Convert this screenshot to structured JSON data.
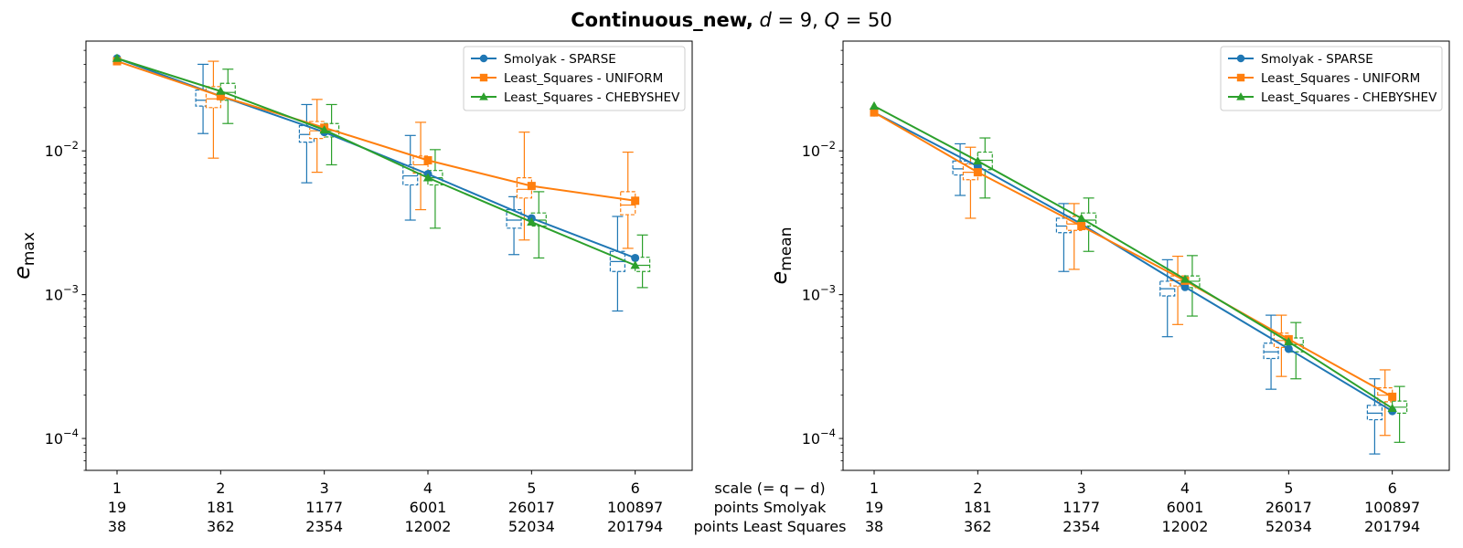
{
  "figure_title": {
    "bold": "Continuous_new,",
    "d_var": "d",
    "d_value": "= 9,",
    "q_var": "Q",
    "q_value": "= 50"
  },
  "x_footer": {
    "line1": "scale (= q − d)",
    "line2": "points Smolyak",
    "line3": "points Least Squares"
  },
  "colors": {
    "smolyak": "#1f77b4",
    "ls_uniform": "#ff7f0e",
    "ls_cheb": "#2ca02c"
  },
  "chart_data": [
    {
      "type": "line",
      "ylabel": {
        "base": "e",
        "sub": "max"
      },
      "yscale": "log",
      "ylim": [
        6e-05,
        0.058
      ],
      "yticks": [
        {
          "value": 0.01,
          "base": "10",
          "exp": "−2"
        },
        {
          "value": 0.001,
          "base": "10",
          "exp": "−3"
        },
        {
          "value": 0.0001,
          "base": "10",
          "exp": "−4"
        }
      ],
      "x": [
        1,
        2,
        3,
        4,
        5,
        6
      ],
      "xlim": [
        0.7,
        6.55
      ],
      "x_tick_labels": [
        [
          "1",
          "19",
          "38"
        ],
        [
          "2",
          "181",
          "362"
        ],
        [
          "3",
          "1177",
          "2354"
        ],
        [
          "4",
          "6001",
          "12002"
        ],
        [
          "5",
          "26017",
          "52034"
        ],
        [
          "6",
          "100897",
          "201794"
        ]
      ],
      "legend_position": "top-right",
      "series": [
        {
          "name": "Smolyak - SPARSE",
          "color_key": "smolyak",
          "marker": "circle",
          "box_offset": -0.17,
          "values": [
            0.044,
            0.024,
            0.0135,
            0.0069,
            0.0034,
            0.0018
          ],
          "boxes": [
            {
              "lo": 0.0132,
              "q1": 0.0205,
              "med": 0.0225,
              "q3": 0.0265,
              "hi": 0.04
            },
            {
              "lo": 0.006,
              "q1": 0.0115,
              "med": 0.013,
              "q3": 0.015,
              "hi": 0.021
            },
            {
              "lo": 0.0033,
              "q1": 0.0058,
              "med": 0.0067,
              "q3": 0.008,
              "hi": 0.0128
            },
            {
              "lo": 0.0019,
              "q1": 0.0029,
              "med": 0.0033,
              "q3": 0.0039,
              "hi": 0.0048
            },
            {
              "lo": 0.00077,
              "q1": 0.00145,
              "med": 0.0017,
              "q3": 0.002,
              "hi": 0.0035
            }
          ]
        },
        {
          "name": "Least_Squares - UNIFORM",
          "color_key": "ls_uniform",
          "marker": "square",
          "box_offset": -0.07,
          "values": [
            0.042,
            0.024,
            0.0145,
            0.0086,
            0.0057,
            0.0045
          ],
          "boxes": [
            {
              "lo": 0.0089,
              "q1": 0.02,
              "med": 0.023,
              "q3": 0.028,
              "hi": 0.042
            },
            {
              "lo": 0.0071,
              "q1": 0.0122,
              "med": 0.0138,
              "q3": 0.016,
              "hi": 0.0228
            },
            {
              "lo": 0.0039,
              "q1": 0.007,
              "med": 0.008,
              "q3": 0.0092,
              "hi": 0.0158
            },
            {
              "lo": 0.0024,
              "q1": 0.0047,
              "med": 0.0054,
              "q3": 0.0065,
              "hi": 0.0135
            },
            {
              "lo": 0.0021,
              "q1": 0.0036,
              "med": 0.0042,
              "q3": 0.0052,
              "hi": 0.0098
            }
          ]
        },
        {
          "name": "Least_Squares - CHEBYSHEV",
          "color_key": "ls_cheb",
          "marker": "triangle",
          "box_offset": 0.07,
          "values": [
            0.044,
            0.026,
            0.014,
            0.0065,
            0.0032,
            0.0016
          ],
          "boxes": [
            {
              "lo": 0.0155,
              "q1": 0.0225,
              "med": 0.0255,
              "q3": 0.0295,
              "hi": 0.037
            },
            {
              "lo": 0.008,
              "q1": 0.0125,
              "med": 0.0138,
              "q3": 0.0155,
              "hi": 0.021
            },
            {
              "lo": 0.0029,
              "q1": 0.0058,
              "med": 0.0065,
              "q3": 0.0073,
              "hi": 0.0102
            },
            {
              "lo": 0.0018,
              "q1": 0.003,
              "med": 0.0033,
              "q3": 0.0037,
              "hi": 0.0052
            },
            {
              "lo": 0.00112,
              "q1": 0.00145,
              "med": 0.0016,
              "q3": 0.00182,
              "hi": 0.0026
            }
          ]
        }
      ]
    },
    {
      "type": "line",
      "ylabel": {
        "base": "e",
        "sub": "mean"
      },
      "yscale": "log",
      "ylim": [
        6e-05,
        0.058
      ],
      "yticks": [
        {
          "value": 0.01,
          "base": "10",
          "exp": "−2"
        },
        {
          "value": 0.001,
          "base": "10",
          "exp": "−3"
        },
        {
          "value": 0.0001,
          "base": "10",
          "exp": "−4"
        }
      ],
      "x": [
        1,
        2,
        3,
        4,
        5,
        6
      ],
      "xlim": [
        0.7,
        6.55
      ],
      "x_tick_labels": [
        [
          "1",
          "19",
          "38"
        ],
        [
          "2",
          "181",
          "362"
        ],
        [
          "3",
          "1177",
          "2354"
        ],
        [
          "4",
          "6001",
          "12002"
        ],
        [
          "5",
          "26017",
          "52034"
        ],
        [
          "6",
          "100897",
          "201794"
        ]
      ],
      "legend_position": "top-right",
      "series": [
        {
          "name": "Smolyak - SPARSE",
          "color_key": "smolyak",
          "marker": "circle",
          "box_offset": -0.17,
          "values": [
            0.0185,
            0.0078,
            0.0031,
            0.00113,
            0.00042,
            0.000155
          ],
          "boxes": [
            {
              "lo": 0.0049,
              "q1": 0.0068,
              "med": 0.0075,
              "q3": 0.0085,
              "hi": 0.0112
            },
            {
              "lo": 0.00145,
              "q1": 0.0027,
              "med": 0.003,
              "q3": 0.0034,
              "hi": 0.0043
            },
            {
              "lo": 0.00051,
              "q1": 0.00098,
              "med": 0.0011,
              "q3": 0.00124,
              "hi": 0.00175
            },
            {
              "lo": 0.00022,
              "q1": 0.00036,
              "med": 0.0004,
              "q3": 0.00046,
              "hi": 0.00072
            },
            {
              "lo": 7.8e-05,
              "q1": 0.000135,
              "med": 0.00015,
              "q3": 0.00017,
              "hi": 0.00026
            }
          ]
        },
        {
          "name": "Least_Squares - UNIFORM",
          "color_key": "ls_uniform",
          "marker": "square",
          "box_offset": -0.07,
          "values": [
            0.0185,
            0.0071,
            0.003,
            0.00125,
            0.00049,
            0.000195
          ],
          "boxes": [
            {
              "lo": 0.0034,
              "q1": 0.0063,
              "med": 0.0071,
              "q3": 0.0081,
              "hi": 0.0106
            },
            {
              "lo": 0.0015,
              "q1": 0.0028,
              "med": 0.0031,
              "q3": 0.0035,
              "hi": 0.0043
            },
            {
              "lo": 0.00062,
              "q1": 0.00115,
              "med": 0.00125,
              "q3": 0.00135,
              "hi": 0.00185
            },
            {
              "lo": 0.00027,
              "q1": 0.00043,
              "med": 0.00048,
              "q3": 0.00054,
              "hi": 0.00072
            },
            {
              "lo": 0.000105,
              "q1": 0.00018,
              "med": 0.0002,
              "q3": 0.000225,
              "hi": 0.0003
            }
          ]
        },
        {
          "name": "Least_Squares - CHEBYSHEV",
          "color_key": "ls_cheb",
          "marker": "triangle",
          "box_offset": 0.07,
          "values": [
            0.0205,
            0.0085,
            0.0034,
            0.00128,
            0.00047,
            0.000162
          ],
          "boxes": [
            {
              "lo": 0.0047,
              "q1": 0.0074,
              "med": 0.0086,
              "q3": 0.0098,
              "hi": 0.0123
            },
            {
              "lo": 0.002,
              "q1": 0.003,
              "med": 0.0033,
              "q3": 0.0037,
              "hi": 0.0047
            },
            {
              "lo": 0.00071,
              "q1": 0.00112,
              "med": 0.00124,
              "q3": 0.00135,
              "hi": 0.00187
            },
            {
              "lo": 0.00026,
              "q1": 0.0004,
              "med": 0.00045,
              "q3": 0.0005,
              "hi": 0.00064
            },
            {
              "lo": 9.4e-05,
              "q1": 0.00015,
              "med": 0.000165,
              "q3": 0.000182,
              "hi": 0.00023
            }
          ]
        }
      ]
    }
  ]
}
